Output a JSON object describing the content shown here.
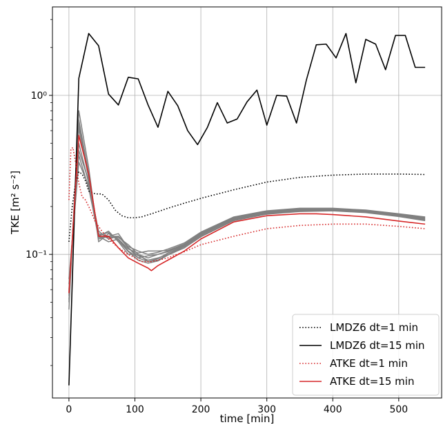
{
  "chart_data": {
    "type": "line",
    "xlabel": "time [min]",
    "ylabel": "TKE [m² s⁻²]",
    "y_scale": "log",
    "xlim": [
      -25,
      565
    ],
    "ylim": [
      0.0125,
      3.6
    ],
    "grid": true,
    "legend_placement": "bottom-right",
    "x_ticks": [
      0,
      100,
      200,
      300,
      400,
      500
    ],
    "x_tick_labels": [
      "0",
      "100",
      "200",
      "300",
      "400",
      "500"
    ],
    "y_ticks": [
      1,
      0.1
    ],
    "y_tick_labels": [
      "10⁰",
      "10⁻¹"
    ],
    "series": [
      {
        "name": "LMDZ6 dt=1 min",
        "color": "#000000",
        "style": "dotted",
        "x": [
          0,
          5,
          10,
          15,
          20,
          25,
          30,
          40,
          50,
          60,
          70,
          80,
          90,
          100,
          110,
          125,
          150,
          175,
          200,
          250,
          300,
          350,
          400,
          450,
          500,
          540
        ],
        "y": [
          0.12,
          0.2,
          0.28,
          0.33,
          0.32,
          0.29,
          0.25,
          0.24,
          0.24,
          0.22,
          0.19,
          0.175,
          0.17,
          0.17,
          0.172,
          0.18,
          0.195,
          0.21,
          0.225,
          0.255,
          0.285,
          0.305,
          0.315,
          0.32,
          0.32,
          0.318
        ]
      },
      {
        "name": "LMDZ6 dt=15 min",
        "color": "#000000",
        "style": "solid",
        "x": [
          0,
          15,
          30,
          45,
          60,
          75,
          90,
          105,
          120,
          135,
          150,
          165,
          180,
          195,
          210,
          225,
          240,
          255,
          270,
          285,
          300,
          315,
          330,
          345,
          360,
          375,
          390,
          405,
          420,
          435,
          450,
          465,
          480,
          495,
          510,
          525,
          540
        ],
        "y": [
          0.015,
          1.28,
          2.45,
          2.05,
          1.02,
          0.87,
          1.3,
          1.27,
          0.87,
          0.63,
          1.06,
          0.86,
          0.6,
          0.49,
          0.63,
          0.9,
          0.67,
          0.71,
          0.91,
          1.08,
          0.65,
          1.0,
          0.99,
          0.67,
          1.25,
          2.08,
          2.1,
          1.72,
          2.45,
          1.2,
          2.25,
          2.1,
          1.45,
          2.38,
          2.38,
          1.5,
          1.5
        ]
      },
      {
        "name": "ATKE dt=1 min",
        "color": "#d62728",
        "style": "dotted",
        "x": [
          0,
          3,
          6,
          10,
          15,
          20,
          25,
          30,
          35,
          40,
          50,
          60,
          75,
          90,
          100,
          110,
          125,
          150,
          175,
          200,
          250,
          300,
          350,
          400,
          450,
          500,
          540
        ],
        "y": [
          0.22,
          0.46,
          0.47,
          0.38,
          0.28,
          0.23,
          0.22,
          0.2,
          0.18,
          0.16,
          0.14,
          0.125,
          0.11,
          0.1,
          0.095,
          0.09,
          0.09,
          0.095,
          0.104,
          0.115,
          0.13,
          0.145,
          0.152,
          0.155,
          0.155,
          0.15,
          0.145
        ]
      },
      {
        "name": "ATKE dt=15 min",
        "color": "#d62728",
        "style": "solid",
        "x": [
          0,
          15,
          30,
          45,
          60,
          75,
          90,
          105,
          120,
          125,
          135,
          150,
          175,
          200,
          250,
          300,
          350,
          375,
          400,
          450,
          500,
          540
        ],
        "y": [
          0.057,
          0.56,
          0.32,
          0.13,
          0.13,
          0.11,
          0.095,
          0.088,
          0.082,
          0.079,
          0.085,
          0.092,
          0.105,
          0.125,
          0.16,
          0.175,
          0.18,
          0.18,
          0.178,
          0.172,
          0.162,
          0.155
        ]
      }
    ],
    "ensemble": {
      "color": "#808080",
      "x": [
        0,
        15,
        30,
        45,
        60,
        75,
        90,
        105,
        120,
        135,
        150,
        175,
        200,
        250,
        300,
        350,
        400,
        450,
        500,
        540
      ],
      "members": [
        [
          0.045,
          0.8,
          0.35,
          0.12,
          0.135,
          0.125,
          0.105,
          0.095,
          0.09,
          0.092,
          0.1,
          0.11,
          0.13,
          0.165,
          0.18,
          0.188,
          0.19,
          0.185,
          0.175,
          0.165
        ],
        [
          0.05,
          0.7,
          0.32,
          0.13,
          0.14,
          0.12,
          0.1,
          0.1,
          0.095,
          0.1,
          0.105,
          0.115,
          0.135,
          0.17,
          0.185,
          0.192,
          0.193,
          0.188,
          0.178,
          0.17
        ],
        [
          0.055,
          0.62,
          0.3,
          0.135,
          0.13,
          0.13,
          0.11,
          0.098,
          0.092,
          0.095,
          0.1,
          0.112,
          0.132,
          0.168,
          0.183,
          0.19,
          0.192,
          0.187,
          0.177,
          0.168
        ],
        [
          0.06,
          0.5,
          0.28,
          0.14,
          0.125,
          0.13,
          0.112,
          0.105,
          0.1,
          0.103,
          0.108,
          0.118,
          0.138,
          0.172,
          0.188,
          0.195,
          0.195,
          0.19,
          0.18,
          0.172
        ],
        [
          0.065,
          0.42,
          0.26,
          0.13,
          0.12,
          0.125,
          0.108,
          0.102,
          0.105,
          0.105,
          0.106,
          0.116,
          0.136,
          0.17,
          0.186,
          0.193,
          0.194,
          0.189,
          0.179,
          0.171
        ],
        [
          0.07,
          0.38,
          0.27,
          0.125,
          0.13,
          0.135,
          0.11,
          0.095,
          0.098,
          0.1,
          0.104,
          0.114,
          0.134,
          0.169,
          0.184,
          0.191,
          0.192,
          0.186,
          0.176,
          0.167
        ],
        [
          0.058,
          0.45,
          0.29,
          0.128,
          0.128,
          0.128,
          0.115,
          0.1,
          0.09,
          0.094,
          0.102,
          0.113,
          0.133,
          0.167,
          0.182,
          0.189,
          0.19,
          0.184,
          0.174,
          0.165
        ],
        [
          0.052,
          0.66,
          0.31,
          0.132,
          0.137,
          0.122,
          0.104,
          0.092,
          0.088,
          0.091,
          0.099,
          0.11,
          0.129,
          0.163,
          0.179,
          0.186,
          0.188,
          0.183,
          0.173,
          0.163
        ]
      ]
    }
  }
}
